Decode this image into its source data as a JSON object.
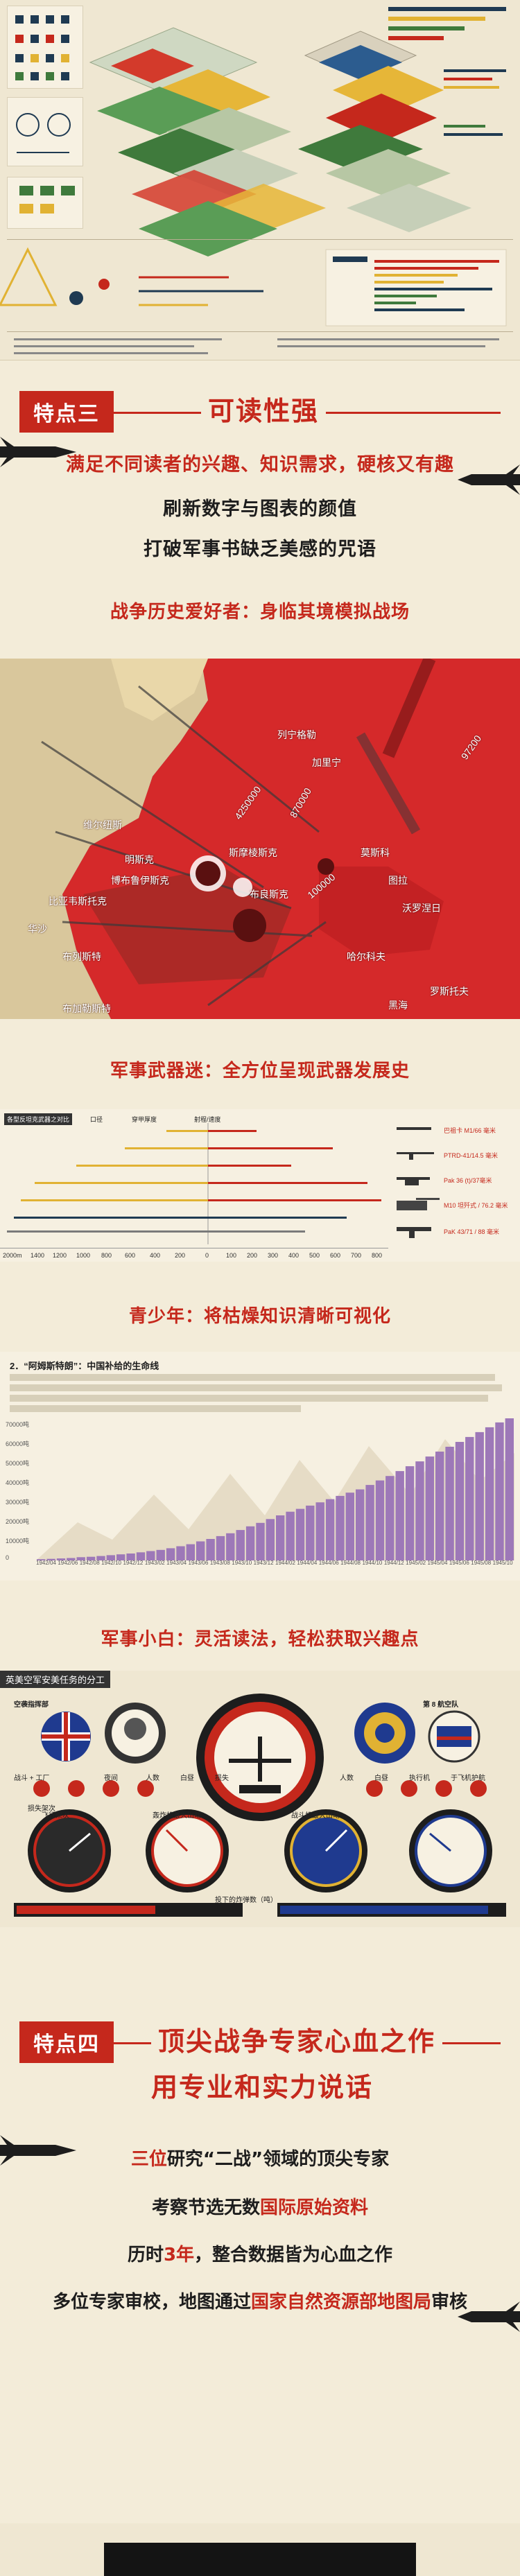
{
  "feature3": {
    "tag": "特点三",
    "title": "可读性强",
    "line1": "满足不同读者的兴趣、知识需求，硬核又有趣",
    "line2": "刷新数字与图表的颜值",
    "line3": "打破军事书缺乏美感的咒语"
  },
  "audiences": {
    "history_fans": "战争历史爱好者：身临其境模拟战场",
    "weapon_fans": "军事武器迷：全方位呈现武器发展史",
    "teens": "青少年：将枯燥知识清晰可视化",
    "newbies": "军事小白：灵活读法，轻松获取兴趣点"
  },
  "map": {
    "cities": [
      "莫斯科",
      "列宁格勒",
      "斯摩棱斯克",
      "布良斯克",
      "博布鲁伊斯克",
      "明斯克",
      "维尔纽斯",
      "比亚韦斯托克",
      "华沙",
      "布列斯特",
      "罗斯托夫",
      "沃罗涅日",
      "图拉",
      "加里宁",
      "哈尔科夫",
      "黑海",
      "布加勒斯特"
    ],
    "labels": [
      "870000",
      "4250000",
      "100000",
      "97200"
    ]
  },
  "weapons": {
    "title": "各型反坦克武器之对比",
    "legend": [
      "口径",
      "穿甲厚度",
      "射程/速度"
    ],
    "items": [
      "巴祖卡 M1/66 毫米",
      "PTRD-41/14.5 毫米",
      "Pak 36 (t)/37毫米",
      "M10 坦歼式 / 76.2 毫米",
      "PaK 43/71 / 88 毫米"
    ],
    "xticks": [
      "2000m",
      "1400",
      "1200",
      "1000",
      "800",
      "600",
      "400",
      "200",
      "0",
      "100",
      "200",
      "300",
      "400",
      "500",
      "600",
      "700",
      "800"
    ]
  },
  "bomber": {
    "title": "2．“阿姆斯特朗”：中国补给的生命线",
    "yticks": [
      "70000吨",
      "60000吨",
      "50000吨",
      "40000吨",
      "30000吨",
      "20000吨",
      "10000吨",
      "0"
    ],
    "values": [
      0.6,
      0.8,
      1.0,
      1.2,
      1.6,
      1.8,
      2.2,
      2.6,
      3.0,
      3.4,
      4.0,
      4.6,
      5.2,
      6.0,
      7.0,
      8.0,
      9.4,
      10.6,
      12.0,
      13.4,
      15.0,
      16.8,
      18.5,
      20.4,
      22.2,
      24.0,
      25.4,
      27.0,
      28.6,
      30.2,
      31.8,
      33.4,
      35.0,
      37.2,
      39.4,
      41.6,
      44.0,
      46.4,
      48.8,
      51.2,
      53.6,
      56.0,
      58.4,
      60.8,
      63.2,
      65.6,
      68.0,
      70.0
    ],
    "xticks": [
      "1942/04",
      "1942/06",
      "1942/08",
      "1942/10",
      "1942/12",
      "1943/02",
      "1943/04",
      "1943/06",
      "1943/08",
      "1943/10",
      "1943/12",
      "1944/02",
      "1944/04",
      "1944/06",
      "1944/08",
      "1944/10",
      "1944/12",
      "1945/02",
      "1945/04",
      "1945/06",
      "1945/08",
      "1945/10"
    ]
  },
  "gauges": {
    "title": "英美空军安美任务的分工",
    "left_person": "空袭指挥部",
    "right_person": "第 8 航空队",
    "labels": [
      "战斗 + 工厂",
      "夜间",
      "人数",
      "白昼",
      "损失",
      "白昼",
      "人数",
      "执行机",
      "于飞机护航",
      "损失架次",
      "飞行架次",
      "轰炸机最大出动",
      "战斗机最大出动",
      "投下的炸弹数（吨）"
    ]
  },
  "feature4": {
    "tag": "特点四",
    "title1": "顶尖战争专家心血之作",
    "title2": "用专业和实力说话",
    "p1_num": "三位",
    "p1_rest": "研究“二战”领域的顶尖专家",
    "p2_a": "考察节选无数",
    "p2_red": "国际原始资料",
    "p3_a": "历时",
    "p3_red": "3年",
    "p3_b": "，整合数据皆为心血之作",
    "p4_a": "多位专家审校，地图通过",
    "p4_red": "国家自然资源部地图局",
    "p4_b": "审核"
  },
  "colors": {
    "accent": "#c5281c",
    "paper": "#f3ecd9",
    "ink": "#1d1d1d"
  }
}
